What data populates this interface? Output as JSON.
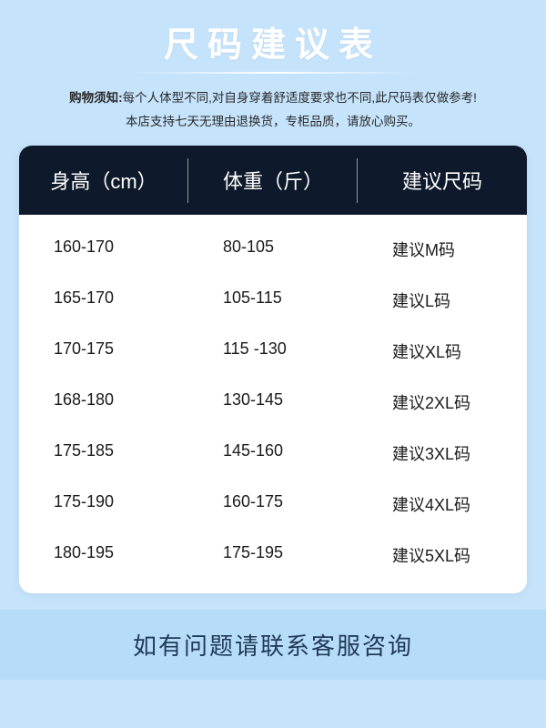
{
  "title": "尺码建议表",
  "notice": {
    "label": "购物须知:",
    "line1": "每个人体型不同,对自身穿着舒适度要求也不同,此尺码表仅做参考!",
    "line2": "本店支持七天无理由退换货，专柜品质，请放心购买。"
  },
  "table": {
    "columns": [
      "身高（cm）",
      "体重（斤）",
      "建议尺码"
    ],
    "rows": [
      [
        "160-170",
        "80-105",
        "建议M码"
      ],
      [
        "165-170",
        "105-115",
        "建议L码"
      ],
      [
        "170-175",
        "115 -130",
        "建议XL码"
      ],
      [
        "168-180",
        "130-145",
        "建议2XL码"
      ],
      [
        "175-185",
        "145-160",
        "建议3XL码"
      ],
      [
        "175-190",
        "160-175",
        "建议4XL码"
      ],
      [
        "180-195",
        "175-195",
        "建议5XL码"
      ]
    ],
    "header_bg": "#0e1a2b",
    "header_color": "#ffffff",
    "body_bg": "#ffffff",
    "text_color": "#1a1a1a",
    "header_fontsize": 22,
    "body_fontsize": 18
  },
  "footer": "如有问题请联系客服咨询",
  "colors": {
    "page_bg": "#c5e3fb",
    "title_color": "#ffffff",
    "footer_bg": "#b7dcf8",
    "footer_color": "#1f3a57"
  }
}
